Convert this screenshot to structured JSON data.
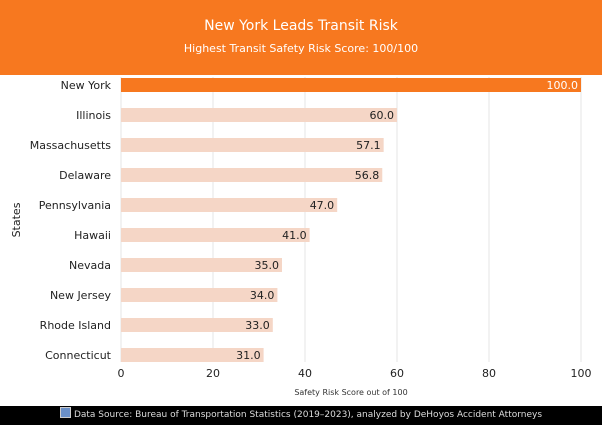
{
  "chart_data": {
    "type": "bar",
    "orientation": "horizontal",
    "title": "New York Leads Transit Risk",
    "subtitle": "Highest Transit Safety Risk Score: 100/100",
    "xlabel": "Safety Risk Score out of 100",
    "ylabel": "States",
    "xlim": [
      0,
      100
    ],
    "xticks": [
      0,
      20,
      40,
      60,
      80,
      100
    ],
    "grid": true,
    "categories": [
      "New York",
      "Illinois",
      "Massachusetts",
      "Delaware",
      "Pennsylvania",
      "Hawaii",
      "Nevada",
      "New Jersey",
      "Rhode Island",
      "Connecticut"
    ],
    "values": [
      100.0,
      60.0,
      57.1,
      56.8,
      47.0,
      41.0,
      35.0,
      34.0,
      33.0,
      31.0
    ],
    "data_labels": [
      "100.0",
      "60.0",
      "57.1",
      "56.8",
      "47.0",
      "41.0",
      "35.0",
      "34.0",
      "33.0",
      "31.0"
    ],
    "colors": {
      "highlight": "#F7781F",
      "default": "#F5D6C6",
      "header": "#F7781F",
      "footer": "#000000"
    }
  },
  "footer": {
    "icon": "bar-chart-icon",
    "text": "Data Source: Bureau of Transportation Statistics (2019–2023), analyzed by DeHoyos Accident Attorneys"
  }
}
